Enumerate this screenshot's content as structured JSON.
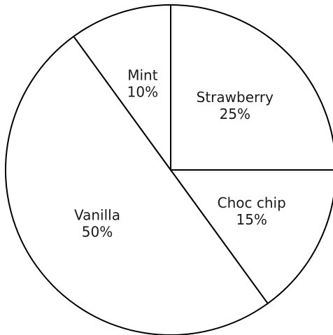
{
  "chart_data": {
    "type": "pie",
    "title": "",
    "start_angle_deg": 0,
    "direction": "clockwise",
    "slices": [
      {
        "label": "Strawberry",
        "percent_label": "25%",
        "value": 25
      },
      {
        "label": "Choc chip",
        "percent_label": "15%",
        "value": 15
      },
      {
        "label": "Vanilla",
        "percent_label": "50%",
        "value": 50
      },
      {
        "label": "Mint",
        "percent_label": "10%",
        "value": 10
      }
    ]
  },
  "colors": {
    "slice_fill": "#ffffff",
    "slice_stroke": "#000000",
    "label_text": "#1a1a1a"
  }
}
